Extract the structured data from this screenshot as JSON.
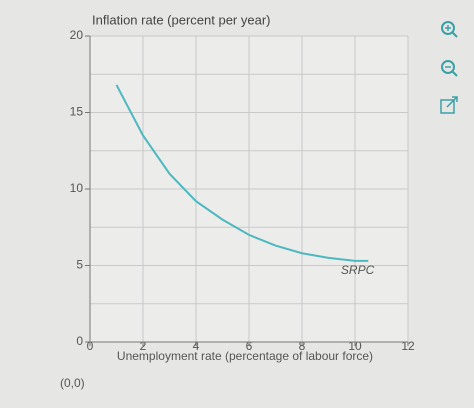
{
  "chart_data": {
    "type": "line",
    "title": "Inflation rate (percent per year)",
    "x_label": "Unemployment rate (percentage of labour force)",
    "footnote": "(0,0)",
    "x": [
      1,
      2,
      3,
      4,
      5,
      6,
      7,
      8,
      9,
      10,
      10.5
    ],
    "series": [
      {
        "name": "SRPC",
        "color": "#4cb8c0",
        "values": [
          16.8,
          13.5,
          11,
          9.2,
          8,
          7,
          6.3,
          5.8,
          5.5,
          5.3,
          5.3
        ]
      }
    ],
    "xlim": [
      0,
      12
    ],
    "xticks": [
      0,
      2,
      4,
      6,
      8,
      10,
      12
    ],
    "ylim": [
      0,
      20
    ],
    "yticks": [
      0,
      5,
      10,
      15,
      20
    ],
    "ygrid": [
      2.5,
      7.5,
      12.5,
      17.5
    ],
    "grid": true
  }
}
